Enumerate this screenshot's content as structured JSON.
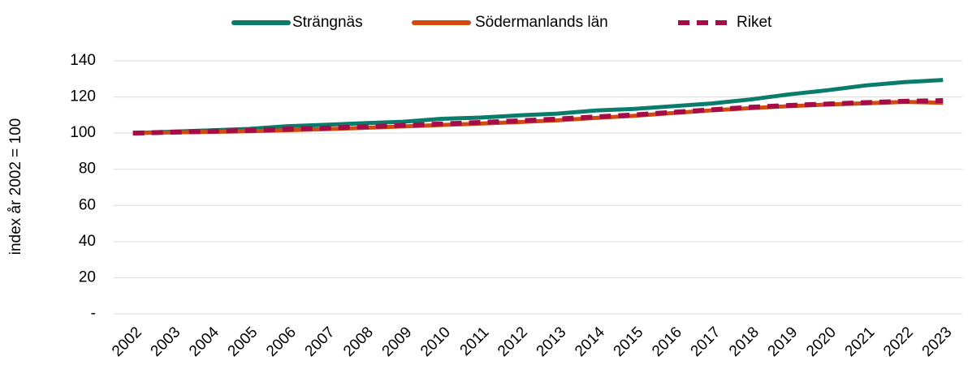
{
  "chart_data": {
    "type": "line",
    "y_label": "index år 2002 = 100",
    "categories": [
      "2002",
      "2003",
      "2004",
      "2005",
      "2006",
      "2007",
      "2008",
      "2009",
      "2010",
      "2011",
      "2012",
      "2013",
      "2014",
      "2015",
      "2016",
      "2017",
      "2018",
      "2019",
      "2020",
      "2021",
      "2022",
      "2023"
    ],
    "series": [
      {
        "name": "Strängnäs",
        "color": "#0a7c6b",
        "dashed": false,
        "values": [
          100,
          100.8,
          101.5,
          102.3,
          103.8,
          104.6,
          105.5,
          106.3,
          107.9,
          108.6,
          109.8,
          110.8,
          112.5,
          113.4,
          114.9,
          116.4,
          118.6,
          121.4,
          123.7,
          126.4,
          128.2,
          129.4
        ]
      },
      {
        "name": "Södermanlands län",
        "color": "#d14a0f",
        "dashed": false,
        "values": [
          100,
          100.4,
          100.7,
          101.1,
          101.6,
          102.2,
          102.9,
          103.7,
          104.5,
          105.3,
          106.1,
          107.1,
          108.4,
          109.6,
          111.1,
          112.6,
          113.8,
          114.9,
          115.8,
          116.5,
          117.3,
          116.8
        ]
      },
      {
        "name": "Riket",
        "color": "#a50c48",
        "dashed": true,
        "values": [
          100,
          100.5,
          101,
          101.5,
          102.2,
          102.8,
          103.5,
          104.3,
          105.1,
          105.9,
          106.8,
          107.8,
          109,
          110.1,
          111.5,
          112.9,
          114.3,
          115.3,
          116.1,
          116.9,
          117.6,
          118.0
        ]
      }
    ],
    "ylim": [
      0,
      140
    ],
    "yticks": [
      {
        "value": 0,
        "label": "-"
      },
      20,
      40,
      60,
      80,
      100,
      120,
      140
    ],
    "grid": true,
    "legend": "top"
  }
}
